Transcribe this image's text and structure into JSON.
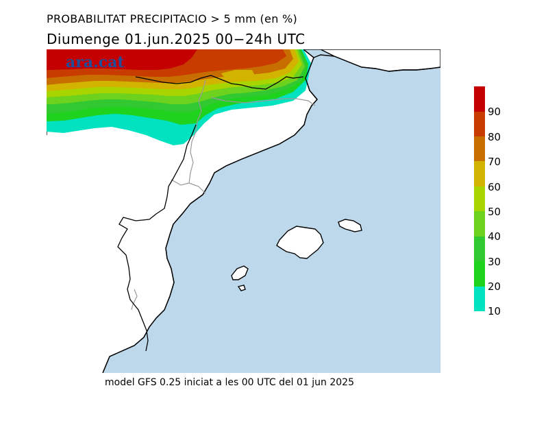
{
  "header": {
    "title": "PROBABILITAT PRECIPITACIO > 5 mm (en %)",
    "subtitle": "Diumenge  01.jun.2025  00−24h  UTC"
  },
  "watermark": "ara.cat",
  "footer": "model GFS 0.25 iniciat a les 00 UTC del 01 jun 2025",
  "legend": {
    "labels": [
      "90",
      "80",
      "70",
      "60",
      "50",
      "40",
      "30",
      "20",
      "10"
    ],
    "colors": {
      "c100": "#c40000",
      "c90": "#c83c00",
      "c80": "#c86e00",
      "c70": "#d2b400",
      "c60": "#a8d400",
      "c50": "#6cd21e",
      "c40": "#32c832",
      "c30": "#1ed21e",
      "c20": "#00e2c0"
    }
  },
  "map_colors": {
    "sea": "#bcd8ea",
    "land": "#ffffff",
    "coast": "#000000",
    "border": "#aaaaaa"
  }
}
